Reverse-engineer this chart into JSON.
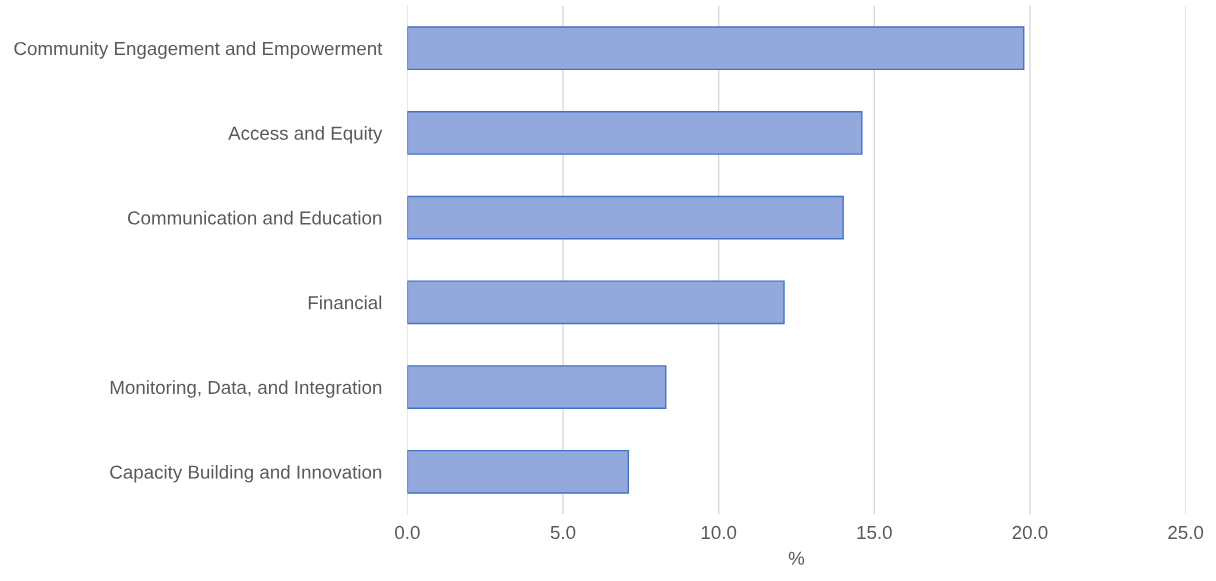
{
  "chart_data": {
    "type": "bar",
    "orientation": "horizontal",
    "xlabel": "%",
    "categories": [
      "Community Engagement and Empowerment",
      "Access and Equity",
      "Communication and Education",
      "Financial",
      "Monitoring, Data, and Integration",
      "Capacity Building and Innovation"
    ],
    "values": [
      19.8,
      14.6,
      14.0,
      12.1,
      8.3,
      7.1
    ],
    "color": "#93a8dc",
    "xlim": [
      0,
      25
    ],
    "xticks": [
      {
        "value": 0,
        "label": "0.0"
      },
      {
        "value": 5,
        "label": "5.0"
      },
      {
        "value": 10,
        "label": "10.0"
      },
      {
        "value": 15,
        "label": "15.0"
      },
      {
        "value": 20,
        "label": "20.0"
      },
      {
        "value": 25,
        "label": "25.0"
      }
    ],
    "grid": "x"
  }
}
